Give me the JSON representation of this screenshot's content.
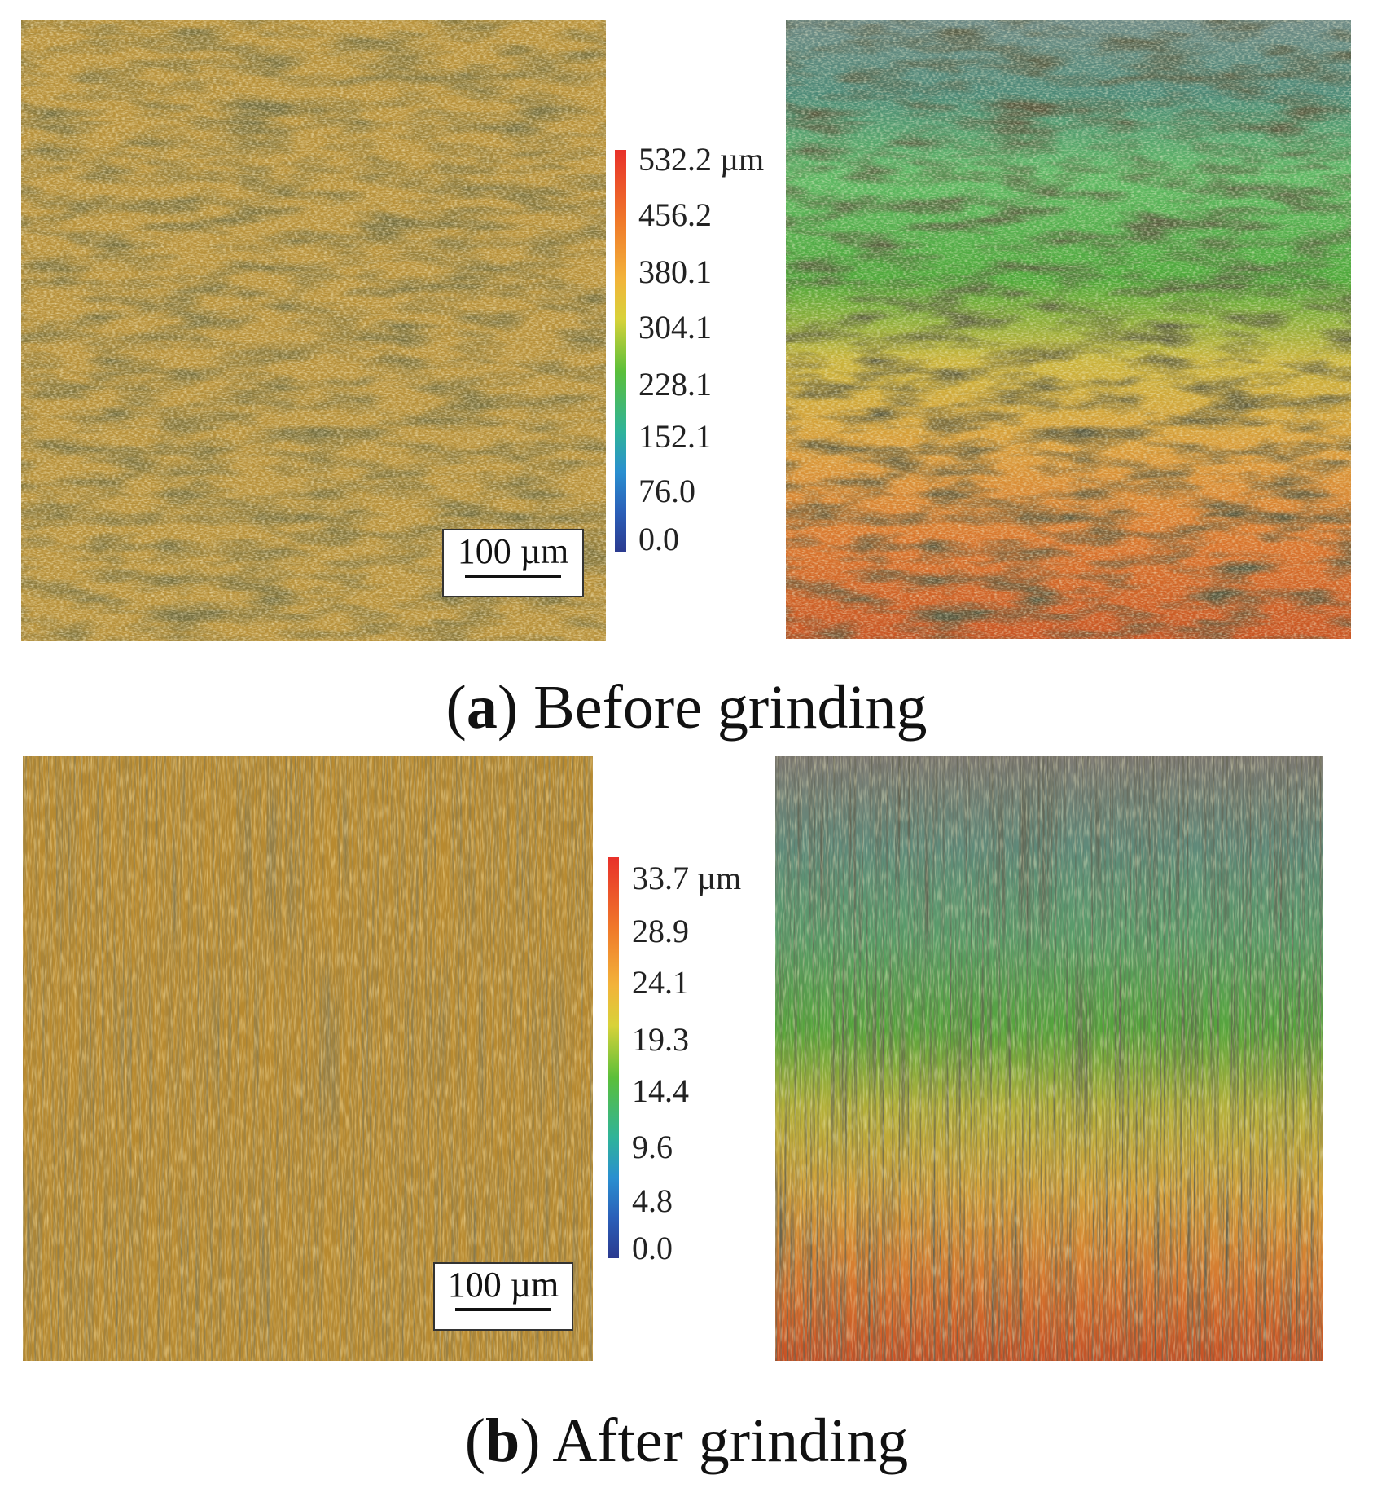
{
  "panels": [
    {
      "id": "a",
      "letter": "a",
      "caption": "Before grinding",
      "scale_bar": "100 µm",
      "colorbar_ticks": [
        "532.2 µm",
        "456.2",
        "380.1",
        "304.1",
        "228.1",
        "152.1",
        "76.0",
        "0.0"
      ],
      "texture": "pitted"
    },
    {
      "id": "b",
      "letter": "b",
      "caption": "After grinding",
      "scale_bar": "100 µm",
      "colorbar_ticks": [
        "33.7 µm",
        "28.9",
        "24.1",
        "19.3",
        "14.4",
        "9.6",
        "4.8",
        "0.0"
      ],
      "texture": "striated"
    }
  ],
  "colors": {
    "optical_base": "#b8923c",
    "colorbar_top": "#e8312a",
    "colorbar_bottom": "#2b3a8f"
  }
}
